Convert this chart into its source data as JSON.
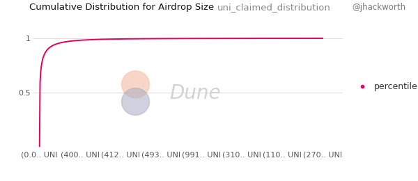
{
  "title": "Cumulative Distribution for Airdrop Size",
  "subtitle": "uni_claimed_distribution",
  "author": "@jhackworth",
  "x_labels": [
    "(0.0.. UNI",
    "(400.. UNI",
    "(412.. UNI",
    "(493.. UNI",
    "(991.. UNI",
    "(310.. UNI",
    "(110.. UNI",
    "(270.. UNI"
  ],
  "yticks": [
    0.5,
    1
  ],
  "ytick_labels": [
    "0.5",
    "1"
  ],
  "line_color": "#e8005a",
  "legend_label": "percentile",
  "legend_dot_color": "#e8005a",
  "background_color": "#ffffff",
  "watermark_text": "Dune",
  "title_fontsize": 9.5,
  "subtitle_fontsize": 9.5,
  "author_fontsize": 8.5,
  "axis_fontsize": 8,
  "legend_fontsize": 9,
  "grid_color": "#e0e0e0",
  "tick_color": "#555555"
}
